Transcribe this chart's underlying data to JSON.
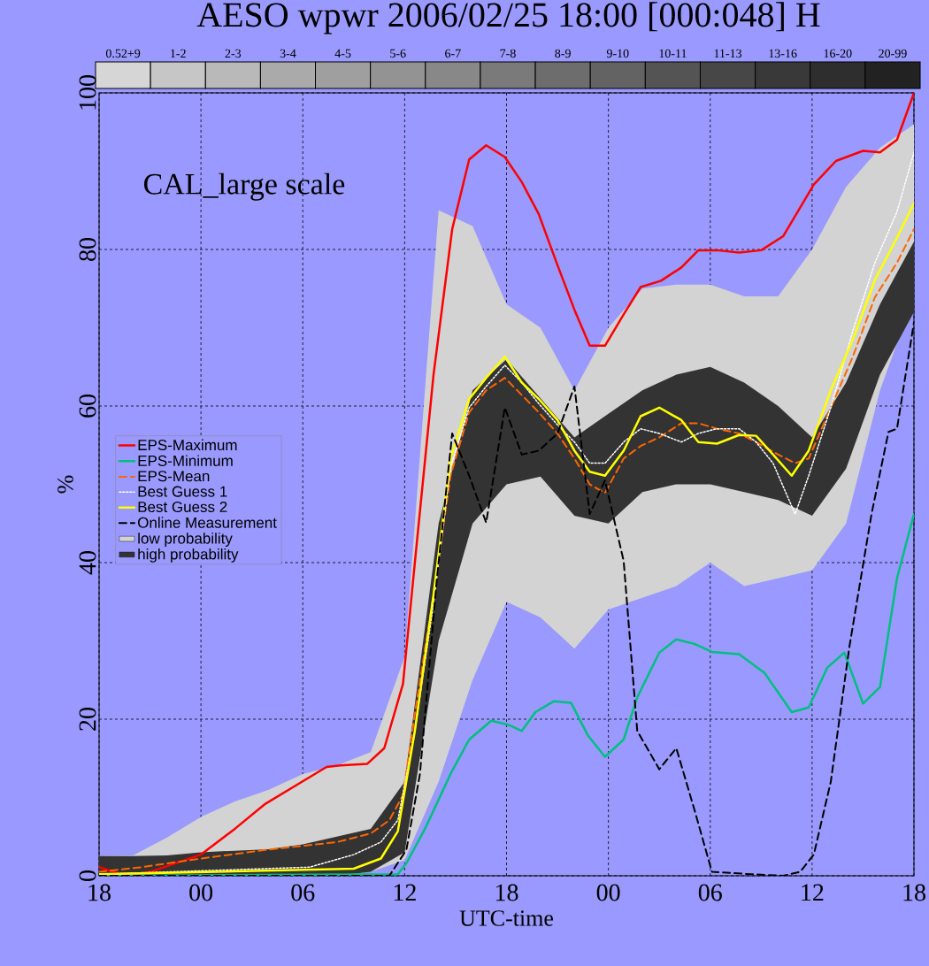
{
  "chart_data": [
    {
      "type": "line",
      "title": "AESO wpwr 2006/02/25 18:00 [000:048] H",
      "xlabel": "UTC-time",
      "ylabel": "%",
      "annotations": [
        "CAL_large scale"
      ],
      "xlim": [
        "2006-02-25T18:00",
        "2006-02-27T18:00"
      ],
      "ylim": [
        0,
        100
      ],
      "xticks": [
        {
          "value": "2006-02-25T18:00",
          "label": "18"
        },
        {
          "value": "2006-02-26T00:00",
          "label": "00"
        },
        {
          "value": "2006-02-26T06:00",
          "label": "06"
        },
        {
          "value": "2006-02-26T12:00",
          "label": "12"
        },
        {
          "value": "2006-02-26T18:00",
          "label": "18"
        },
        {
          "value": "2006-02-27T00:00",
          "label": "00"
        },
        {
          "value": "2006-02-27T06:00",
          "label": "06"
        },
        {
          "value": "2006-02-27T12:00",
          "label": "12"
        },
        {
          "value": "2006-02-27T18:00",
          "label": "18"
        }
      ],
      "yticks": [
        0,
        20,
        40,
        60,
        80,
        100
      ],
      "grid": true,
      "legend": "left",
      "series": [
        {
          "name": "EPS-Maximum",
          "color": "#ff0000",
          "line_style": "solid",
          "x": [
            "2006-02-25T18:00",
            "2006-02-25T19:30",
            "2006-02-25T21:00",
            "2006-02-26T00:00",
            "2006-02-26T02:00",
            "2006-02-26T03:48",
            "2006-02-26T06:06",
            "2006-02-26T07:24",
            "2006-02-26T08:12",
            "2006-02-26T09:48",
            "2006-02-26T10:48",
            "2006-02-26T11:54",
            "2006-02-26T12:36",
            "2006-02-26T13:42",
            "2006-02-26T14:48",
            "2006-02-26T15:48",
            "2006-02-26T16:48",
            "2006-02-26T17:54",
            "2006-02-26T18:54",
            "2006-02-26T19:54",
            "2006-02-26T21:00",
            "2006-02-26T22:00",
            "2006-02-26T22:54",
            "2006-02-26T23:48",
            "2006-02-27T00:54",
            "2006-02-27T01:54",
            "2006-02-27T03:06",
            "2006-02-27T04:18",
            "2006-02-27T05:18",
            "2006-02-27T06:24",
            "2006-02-27T07:42",
            "2006-02-27T09:00",
            "2006-02-27T10:18",
            "2006-02-27T12:06",
            "2006-02-27T13:24",
            "2006-02-27T15:00",
            "2006-02-27T16:00",
            "2006-02-27T17:00",
            "2006-02-27T18:00"
          ],
          "values": [
            1.1,
            0,
            0.5,
            2.7,
            6,
            9.2,
            12.2,
            13.9,
            14.1,
            14.3,
            16.3,
            24.5,
            40,
            64,
            82.6,
            91.5,
            93.3,
            91.8,
            88.6,
            84.5,
            78,
            72.3,
            67.7,
            67.7,
            71.7,
            75.2,
            76,
            77.7,
            79.9,
            79.9,
            79.6,
            79.9,
            81.7,
            88.3,
            91.3,
            92.6,
            92.4,
            94,
            100
          ]
        },
        {
          "name": "EPS-Minimum",
          "color": "#00c080",
          "line_style": "solid",
          "x": [
            "2006-02-25T18:00",
            "2006-02-26T11:36",
            "2006-02-26T12:06",
            "2006-02-26T13:12",
            "2006-02-26T14:42",
            "2006-02-26T15:48",
            "2006-02-26T17:06",
            "2006-02-26T18:06",
            "2006-02-26T18:54",
            "2006-02-26T19:42",
            "2006-02-26T20:48",
            "2006-02-26T21:48",
            "2006-02-26T22:48",
            "2006-02-26T23:48",
            "2006-02-27T00:54",
            "2006-02-27T01:42",
            "2006-02-27T03:00",
            "2006-02-27T04:00",
            "2006-02-27T05:06",
            "2006-02-27T06:06",
            "2006-02-27T07:42",
            "2006-02-27T09:12",
            "2006-02-27T10:48",
            "2006-02-27T11:48",
            "2006-02-27T12:54",
            "2006-02-27T13:54",
            "2006-02-27T15:00",
            "2006-02-27T16:00",
            "2006-02-27T17:00",
            "2006-02-27T18:00"
          ],
          "values": [
            0,
            0.2,
            1.6,
            6,
            13,
            17.4,
            19.8,
            19.3,
            18.5,
            20.9,
            22.3,
            22.1,
            17.9,
            15.2,
            17.4,
            22.8,
            28.5,
            30.2,
            29.6,
            28.6,
            28.3,
            25.9,
            20.9,
            21.5,
            26.6,
            28.5,
            22,
            24.1,
            38,
            46.2
          ]
        },
        {
          "name": "EPS-Mean",
          "color": "#ff6600",
          "line_style": "dashed",
          "x": [
            "2006-02-25T18:00",
            "2006-02-25T20:30",
            "2006-02-26T00:00",
            "2006-02-26T03:48",
            "2006-02-26T08:00",
            "2006-02-26T10:00",
            "2006-02-26T11:06",
            "2006-02-26T11:54",
            "2006-02-26T12:36",
            "2006-02-26T13:42",
            "2006-02-26T14:42",
            "2006-02-26T15:48",
            "2006-02-26T16:48",
            "2006-02-26T17:54",
            "2006-02-26T18:54",
            "2006-02-26T19:54",
            "2006-02-26T21:00",
            "2006-02-26T22:00",
            "2006-02-26T22:54",
            "2006-02-26T23:48",
            "2006-02-27T00:54",
            "2006-02-27T01:54",
            "2006-02-27T03:00",
            "2006-02-27T04:18",
            "2006-02-27T05:18",
            "2006-02-27T06:24",
            "2006-02-27T07:42",
            "2006-02-27T08:42",
            "2006-02-27T10:00",
            "2006-02-27T11:00",
            "2006-02-27T11:48",
            "2006-02-27T13:06",
            "2006-02-27T14:24",
            "2006-02-27T15:42",
            "2006-02-27T17:00",
            "2006-02-27T18:00"
          ],
          "values": [
            0.5,
            1.1,
            2.2,
            3.3,
            4.3,
            5.4,
            7.1,
            10.3,
            20.7,
            35.9,
            51.1,
            59.2,
            62,
            63.6,
            61.4,
            59.2,
            56.5,
            53.3,
            50,
            48.9,
            53.3,
            54.9,
            56,
            57.8,
            57.8,
            57.1,
            56.5,
            55.4,
            53.8,
            52.7,
            53.3,
            59.8,
            66.3,
            73.9,
            78.3,
            82.6
          ]
        },
        {
          "name": "Best Guess 1",
          "color": "#ffffff",
          "line_style": "dotted",
          "x": [
            "2006-02-25T18:00",
            "2006-02-26T06:24",
            "2006-02-26T09:00",
            "2006-02-26T10:36",
            "2006-02-26T11:36",
            "2006-02-26T12:36",
            "2006-02-26T13:42",
            "2006-02-26T14:42",
            "2006-02-26T15:48",
            "2006-02-26T16:48",
            "2006-02-26T17:54",
            "2006-02-26T18:54",
            "2006-02-26T19:54",
            "2006-02-26T21:00",
            "2006-02-26T22:00",
            "2006-02-26T22:54",
            "2006-02-26T23:48",
            "2006-02-27T00:54",
            "2006-02-27T01:54",
            "2006-02-27T03:00",
            "2006-02-27T04:18",
            "2006-02-27T05:18",
            "2006-02-27T06:24",
            "2006-02-27T07:42",
            "2006-02-27T08:42",
            "2006-02-27T09:42",
            "2006-02-27T11:00",
            "2006-02-27T11:48",
            "2006-02-27T13:06",
            "2006-02-27T14:24",
            "2006-02-27T15:42",
            "2006-02-27T17:00",
            "2006-02-27T18:00"
          ],
          "values": [
            0.2,
            1.1,
            2.7,
            4.3,
            7.1,
            18.5,
            34.8,
            52.2,
            59.8,
            62.5,
            65.2,
            63,
            60.3,
            57.6,
            55.4,
            52.7,
            52.7,
            55.4,
            57.1,
            56.5,
            55.4,
            56.5,
            57.1,
            57.1,
            55.4,
            52.7,
            46.2,
            51.1,
            59.8,
            69.6,
            78.3,
            84.8,
            92.4
          ]
        },
        {
          "name": "Best Guess 2",
          "color": "#ffff00",
          "line_style": "solid",
          "x": [
            "2006-02-25T18:00",
            "2006-02-26T09:00",
            "2006-02-26T10:36",
            "2006-02-26T11:36",
            "2006-02-26T12:36",
            "2006-02-26T13:42",
            "2006-02-26T14:42",
            "2006-02-26T15:48",
            "2006-02-26T16:48",
            "2006-02-26T17:54",
            "2006-02-26T18:54",
            "2006-02-26T19:54",
            "2006-02-26T21:00",
            "2006-02-26T22:00",
            "2006-02-26T22:54",
            "2006-02-26T23:48",
            "2006-02-27T00:54",
            "2006-02-27T01:54",
            "2006-02-27T03:00",
            "2006-02-27T04:18",
            "2006-02-27T05:18",
            "2006-02-27T06:24",
            "2006-02-27T07:42",
            "2006-02-27T08:42",
            "2006-02-27T09:42",
            "2006-02-27T10:48",
            "2006-02-27T11:48",
            "2006-02-27T13:06",
            "2006-02-27T14:24",
            "2006-02-27T15:42",
            "2006-02-27T17:00",
            "2006-02-27T18:00"
          ],
          "values": [
            0.2,
            0.9,
            2.2,
            5.7,
            18.5,
            35.9,
            53.3,
            60.9,
            63.6,
            66.3,
            63,
            60.9,
            58.2,
            54.3,
            51.6,
            51.1,
            54.3,
            58.7,
            59.8,
            58.2,
            55.4,
            55.2,
            56.3,
            56.2,
            53.8,
            51.1,
            54.3,
            62,
            68.5,
            76.1,
            81.5,
            85.9
          ]
        },
        {
          "name": "Online Measurement",
          "color": "#000000",
          "line_style": "dashed",
          "x": [
            "2006-02-25T18:00",
            "2006-02-26T11:06",
            "2006-02-26T12:06",
            "2006-02-26T12:54",
            "2006-02-26T13:54",
            "2006-02-26T14:48",
            "2006-02-26T15:48",
            "2006-02-26T16:48",
            "2006-02-26T17:54",
            "2006-02-26T18:54",
            "2006-02-26T19:54",
            "2006-02-26T21:00",
            "2006-02-26T22:00",
            "2006-02-26T22:54",
            "2006-02-26T23:48",
            "2006-02-27T00:54",
            "2006-02-27T01:42",
            "2006-02-27T03:00",
            "2006-02-27T04:00",
            "2006-02-27T05:06",
            "2006-02-27T06:06",
            "2006-02-27T08:24",
            "2006-02-27T10:18",
            "2006-02-27T11:18",
            "2006-02-27T12:06",
            "2006-02-27T13:06",
            "2006-02-27T14:12",
            "2006-02-27T15:30",
            "2006-02-27T16:30",
            "2006-02-27T17:00",
            "2006-02-27T18:00"
          ],
          "values": [
            0,
            0,
            3.3,
            13,
            38,
            56.5,
            51.1,
            45.1,
            59.8,
            53.8,
            54.3,
            56.5,
            62.5,
            46.2,
            50.5,
            40.2,
            18.5,
            13.6,
            16.3,
            8.2,
            0.5,
            0.2,
            0,
            0.5,
            2.7,
            12,
            29.3,
            46.2,
            56.7,
            57.1,
            70.7
          ]
        },
        {
          "name": "low probability",
          "type": "area",
          "color": "#d3d3d3",
          "x": [
            "2006-02-25T18:00",
            "2006-02-25T20:00",
            "2006-02-25T22:00",
            "2006-02-26T00:00",
            "2006-02-26T02:00",
            "2006-02-26T04:00",
            "2006-02-26T06:00",
            "2006-02-26T08:00",
            "2006-02-26T10:00",
            "2006-02-26T12:00",
            "2006-02-26T14:00",
            "2006-02-26T16:00",
            "2006-02-26T18:00",
            "2006-02-26T20:00",
            "2006-02-26T22:00",
            "2006-02-27T00:00",
            "2006-02-27T02:00",
            "2006-02-27T04:00",
            "2006-02-27T06:00",
            "2006-02-27T08:00",
            "2006-02-27T10:00",
            "2006-02-27T12:00",
            "2006-02-27T14:00",
            "2006-02-27T16:00",
            "2006-02-27T18:00"
          ],
          "values": [
            null,
            null,
            null,
            null,
            null,
            null,
            null,
            null,
            null,
            null,
            null,
            null,
            null,
            null,
            null,
            null,
            null,
            null,
            null,
            null,
            null,
            null,
            null,
            null,
            null
          ],
          "upper": [
            2.5,
            2.6,
            4.9,
            7.5,
            9.5,
            11,
            13,
            14.1,
            15.8,
            28,
            85,
            83,
            73,
            70,
            62,
            70,
            75,
            75.5,
            75.5,
            74,
            74,
            80,
            88,
            93,
            96
          ],
          "lower": [
            0,
            0,
            0,
            0,
            0,
            0,
            0,
            0,
            0.5,
            2,
            12,
            25,
            35,
            33,
            29,
            34,
            35.5,
            37,
            40,
            37,
            38,
            39,
            45,
            62,
            74
          ]
        },
        {
          "name": "high probability",
          "type": "area",
          "color": "#333333",
          "x": [
            "2006-02-25T18:00",
            "2006-02-25T20:00",
            "2006-02-25T22:00",
            "2006-02-26T00:00",
            "2006-02-26T02:00",
            "2006-02-26T04:00",
            "2006-02-26T06:00",
            "2006-02-26T08:00",
            "2006-02-26T10:00",
            "2006-02-26T12:00",
            "2006-02-26T14:00",
            "2006-02-26T16:00",
            "2006-02-26T18:00",
            "2006-02-26T20:00",
            "2006-02-26T22:00",
            "2006-02-27T00:00",
            "2006-02-27T02:00",
            "2006-02-27T04:00",
            "2006-02-27T06:00",
            "2006-02-27T08:00",
            "2006-02-27T10:00",
            "2006-02-27T12:00",
            "2006-02-27T14:00",
            "2006-02-27T16:00",
            "2006-02-27T18:00"
          ],
          "values": [
            null,
            null,
            null,
            null,
            null,
            null,
            null,
            null,
            null,
            null,
            null,
            null,
            null,
            null,
            null,
            null,
            null,
            null,
            null,
            null,
            null,
            null,
            null,
            null,
            null
          ],
          "upper": [
            2.5,
            2.5,
            2.6,
            3,
            3.2,
            3.4,
            4,
            5,
            6,
            12,
            45,
            62,
            66,
            61,
            56,
            59,
            62,
            64,
            65,
            63,
            60,
            56,
            63,
            73,
            81
          ],
          "lower": [
            0,
            0,
            0,
            0,
            0,
            0,
            0,
            0,
            0.5,
            3,
            30,
            45,
            50,
            51,
            46,
            45,
            49,
            50,
            50,
            49,
            48,
            46,
            52,
            64,
            72
          ]
        }
      ]
    },
    {
      "type": "other",
      "categories": [
        "0.52+9",
        "1-2",
        "2-3",
        "3-4",
        "4-5",
        "5-6",
        "6-7",
        "7-8",
        "8-9",
        "9-10",
        "10-11",
        "11-13",
        "13-16",
        "16-20",
        "20-99"
      ],
      "colors": [
        "#d6d6d6",
        "#c6c6c6",
        "#b9b9b9",
        "#aaaaaa",
        "#9f9f9f",
        "#939393",
        "#888888",
        "#7a7a7a",
        "#6d6d6d",
        "#636363",
        "#545454",
        "#474747",
        "#393939",
        "#2e2e2e",
        "#222222"
      ]
    }
  ]
}
